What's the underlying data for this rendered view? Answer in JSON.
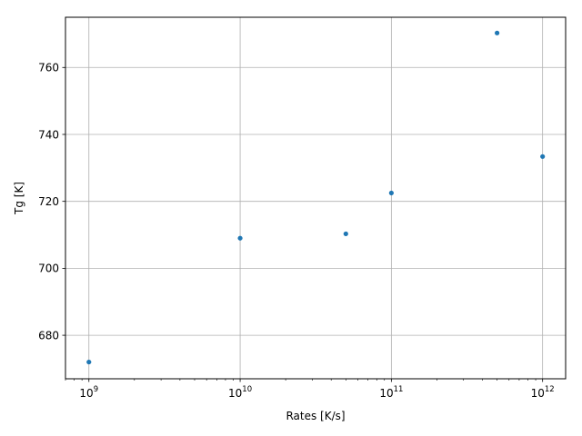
{
  "chart_data": {
    "type": "scatter",
    "title": "",
    "xlabel": "Rates [K/s]",
    "ylabel": "Tg [K]",
    "x_scale": "log",
    "xlim": [
      700000000.0,
      1420000000000.0
    ],
    "ylim": [
      667.0,
      775.0
    ],
    "grid": true,
    "x_ticks": [
      {
        "value": 1000000000.0,
        "base": "10",
        "exp": "9"
      },
      {
        "value": 10000000000.0,
        "base": "10",
        "exp": "10"
      },
      {
        "value": 100000000000.0,
        "base": "10",
        "exp": "11"
      },
      {
        "value": 1000000000000.0,
        "base": "10",
        "exp": "12"
      }
    ],
    "y_ticks": [
      680,
      700,
      720,
      740,
      760
    ],
    "series": [
      {
        "color": "#1f77b4",
        "x": [
          1000000000.0,
          10000000000.0,
          50000000000.0,
          100000000000.0,
          500000000000.0,
          1000000000000.0
        ],
        "y": [
          672.0,
          709.0,
          710.3,
          722.5,
          770.3,
          733.4
        ]
      }
    ]
  }
}
